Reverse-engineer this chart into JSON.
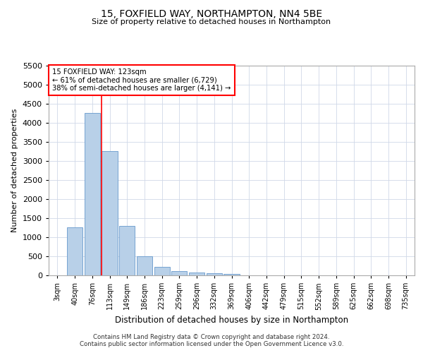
{
  "title1": "15, FOXFIELD WAY, NORTHAMPTON, NN4 5BE",
  "title2": "Size of property relative to detached houses in Northampton",
  "xlabel": "Distribution of detached houses by size in Northampton",
  "ylabel": "Number of detached properties",
  "categories": [
    "3sqm",
    "40sqm",
    "76sqm",
    "113sqm",
    "149sqm",
    "186sqm",
    "223sqm",
    "259sqm",
    "296sqm",
    "332sqm",
    "369sqm",
    "406sqm",
    "442sqm",
    "479sqm",
    "515sqm",
    "552sqm",
    "589sqm",
    "625sqm",
    "662sqm",
    "698sqm",
    "735sqm"
  ],
  "values": [
    0,
    1250,
    4250,
    3250,
    1300,
    490,
    230,
    110,
    80,
    55,
    35,
    0,
    0,
    0,
    0,
    0,
    0,
    0,
    0,
    0,
    0
  ],
  "bar_color": "#b8d0e8",
  "bar_edge_color": "#6699cc",
  "vline_x": 2.55,
  "vline_color": "red",
  "annotation_text": "15 FOXFIELD WAY: 123sqm\n← 61% of detached houses are smaller (6,729)\n38% of semi-detached houses are larger (4,141) →",
  "annotation_box_color": "white",
  "annotation_box_edge": "red",
  "ylim": [
    0,
    5500
  ],
  "yticks": [
    0,
    500,
    1000,
    1500,
    2000,
    2500,
    3000,
    3500,
    4000,
    4500,
    5000,
    5500
  ],
  "footer1": "Contains HM Land Registry data © Crown copyright and database right 2024.",
  "footer2": "Contains public sector information licensed under the Open Government Licence v3.0.",
  "bg_color": "#ffffff",
  "grid_color": "#d0d8e8"
}
